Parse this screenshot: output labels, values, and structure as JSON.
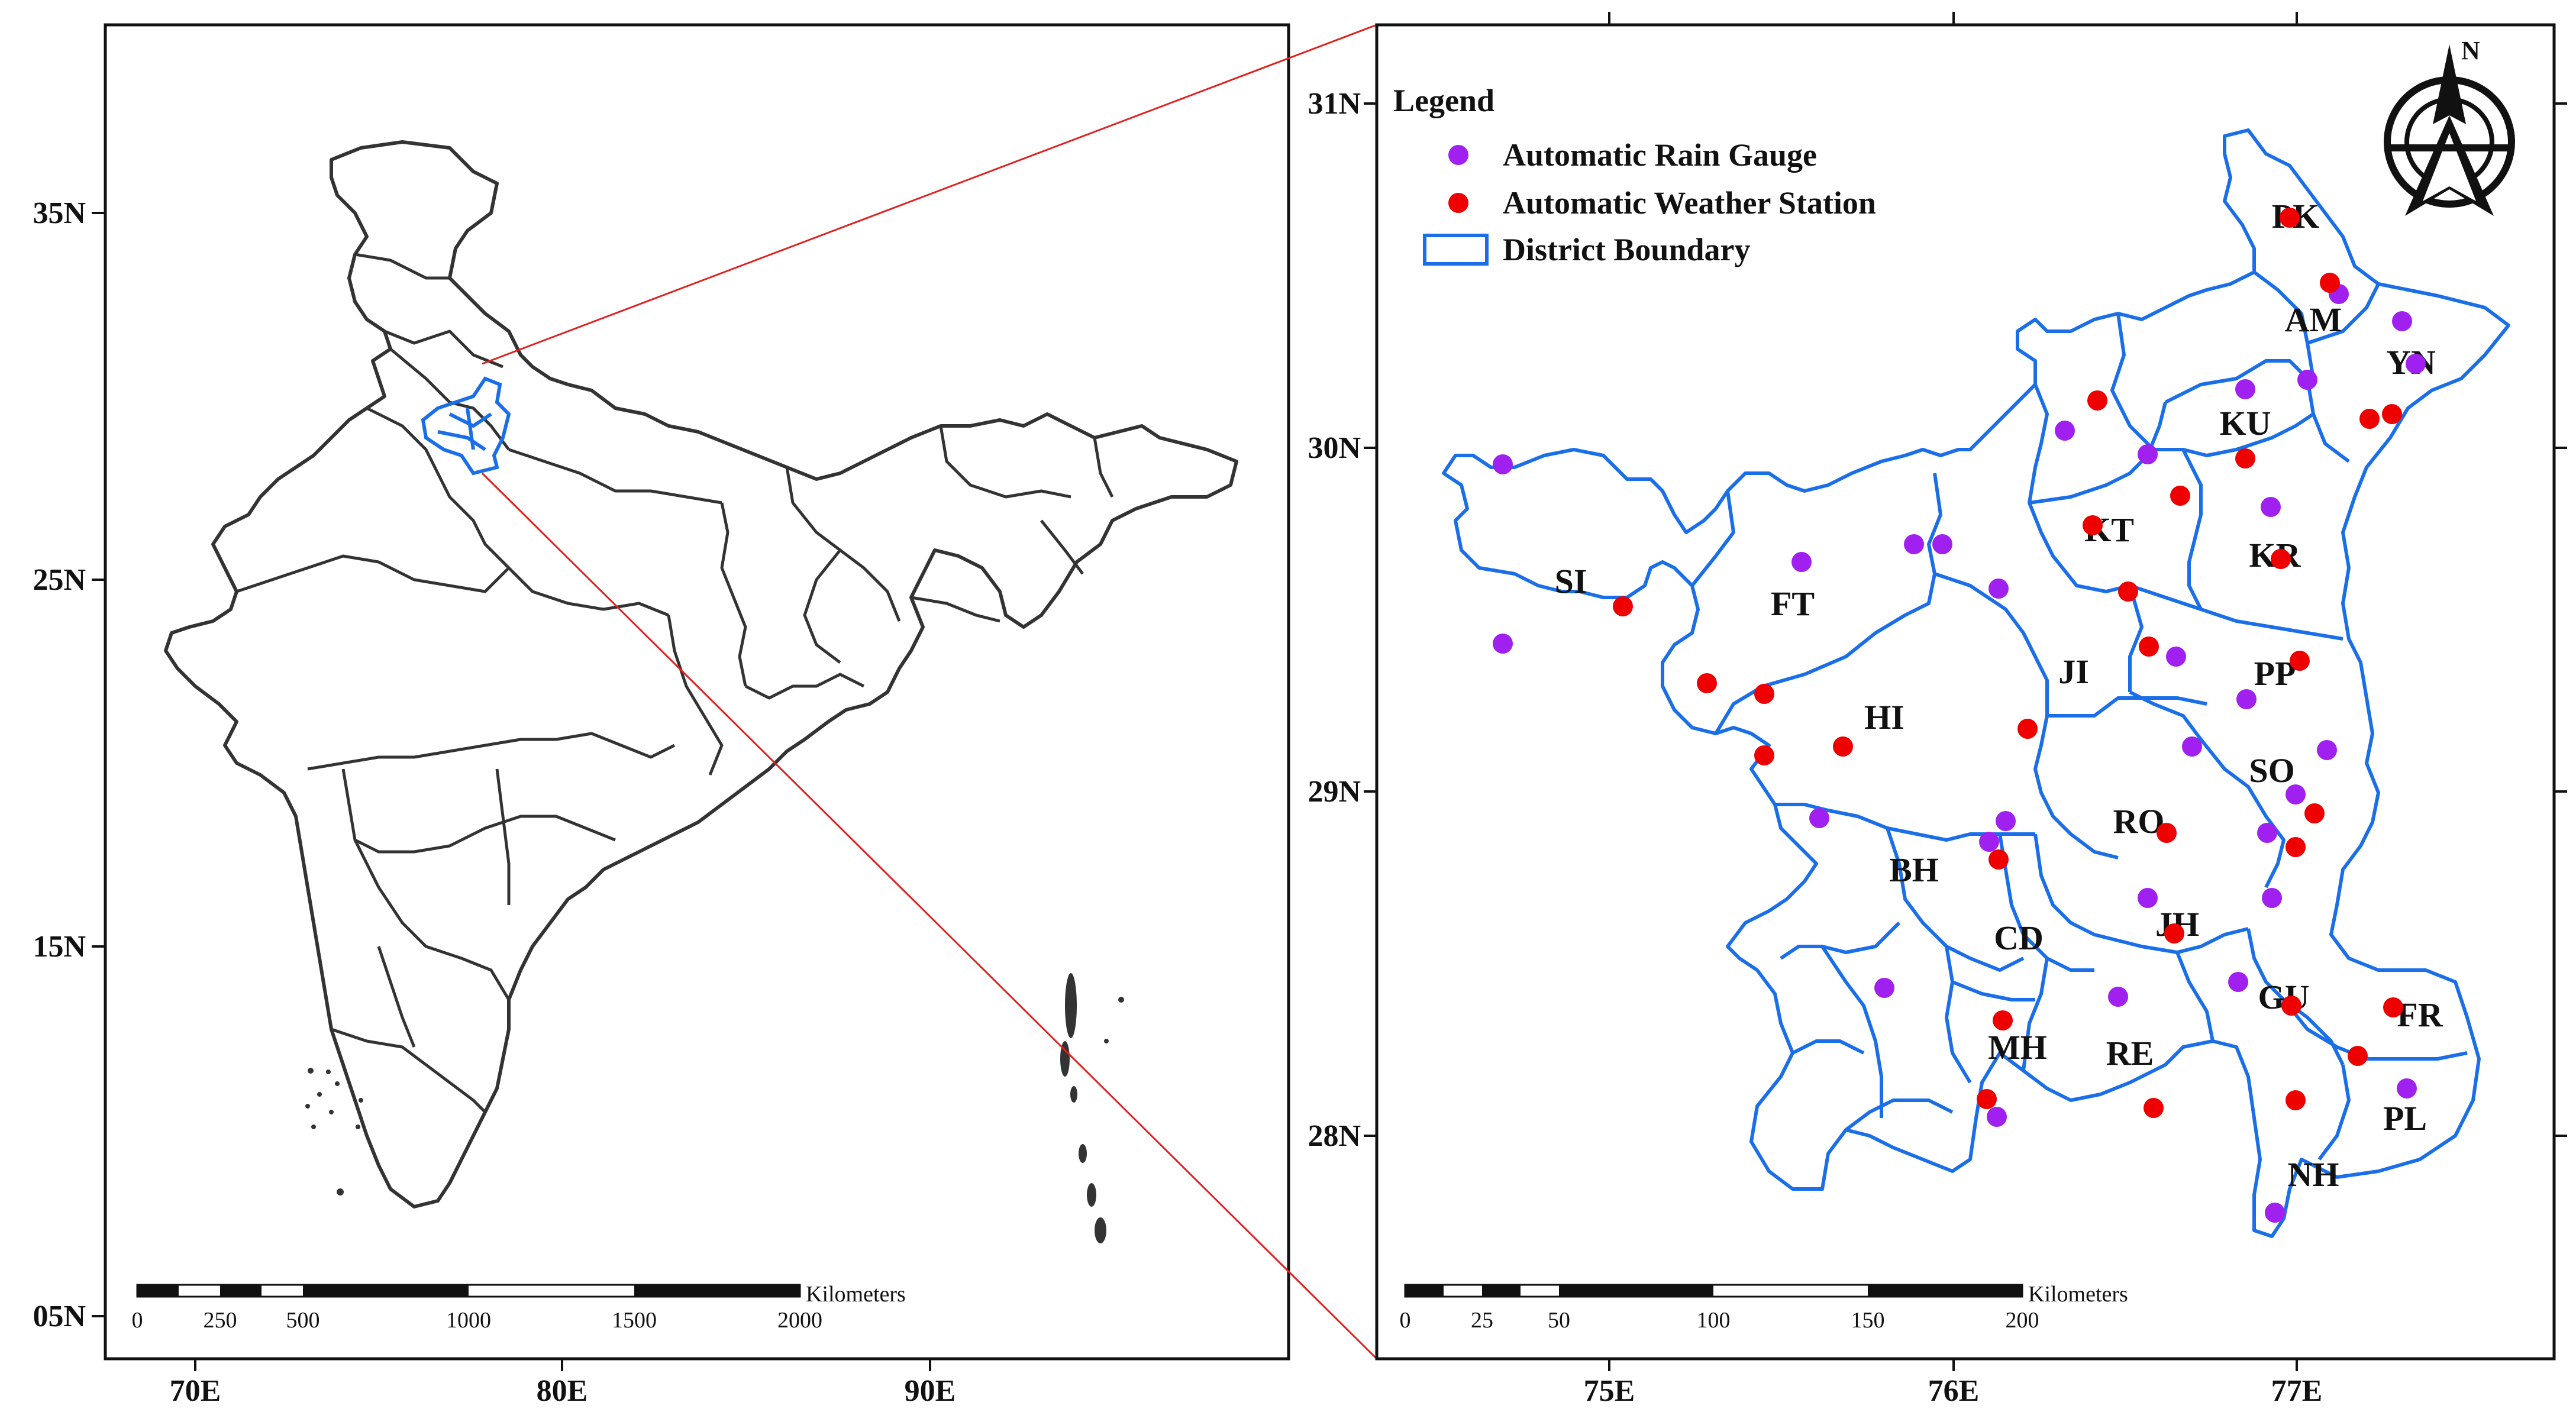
{
  "left_map": {
    "lat_labels": [
      "35N",
      "25N",
      "15N",
      "05N"
    ],
    "lon_labels": [
      "70E",
      "80E",
      "90E"
    ],
    "scale": {
      "ticks": [
        "0",
        "250",
        "500",
        "1000",
        "1500",
        "2000"
      ],
      "unit": "Kilometers"
    }
  },
  "right_map": {
    "lat_labels": [
      "31N",
      "30N",
      "29N",
      "28N"
    ],
    "lon_labels": [
      "75E",
      "76E",
      "77E"
    ],
    "scale": {
      "ticks": [
        "0",
        "25",
        "50",
        "100",
        "150",
        "200"
      ],
      "unit": "Kilometers"
    },
    "north_label": "N",
    "legend": {
      "title": "Legend",
      "items": [
        {
          "label": "Automatic Rain Gauge",
          "color": "#a020f0"
        },
        {
          "label": "Automatic Weather Station",
          "color": "#ee0000"
        },
        {
          "label": "District Boundary",
          "color": "#1a6fe8"
        }
      ]
    },
    "districts": [
      "PK",
      "AM",
      "YN",
      "KU",
      "KT",
      "KR",
      "SI",
      "FT",
      "JI",
      "PP",
      "HI",
      "SO",
      "RO",
      "BH",
      "JH",
      "CD",
      "GU",
      "FR",
      "MH",
      "RE",
      "PL",
      "NH"
    ]
  },
  "colors": {
    "boundary": "#333333",
    "district": "#1a6fe8",
    "inset_line": "#e02020"
  }
}
